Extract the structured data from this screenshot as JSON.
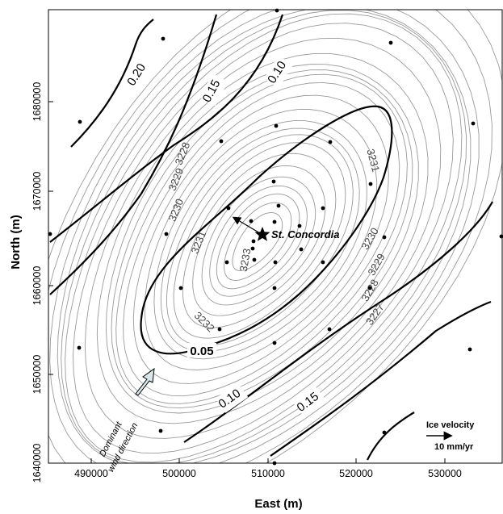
{
  "figure": {
    "xlabel": "East (m)",
    "ylabel": "North (m)",
    "x_ticks": [
      "490000",
      "500000",
      "510000",
      "520000",
      "530000"
    ],
    "y_ticks": [
      "1640000",
      "1650000",
      "1660000",
      "1670000",
      "1680000"
    ]
  },
  "elevation_labels": [
    "3227",
    "3228",
    "3229",
    "3230",
    "3231",
    "3232",
    "3233"
  ],
  "velocity_labels": [
    "0.05",
    "0.10",
    "0.15",
    "0.20"
  ],
  "station": {
    "label": "St. Concordia"
  },
  "wind": {
    "line1": "Dominant",
    "line2": "wind direction"
  },
  "scale": {
    "title": "Ice velocity",
    "value": "10 mm/yr"
  },
  "colors": {
    "contour_thin": "#9a9a9a",
    "contour_bold": "#000000",
    "wind_arrow": "#d6e6ea"
  }
}
